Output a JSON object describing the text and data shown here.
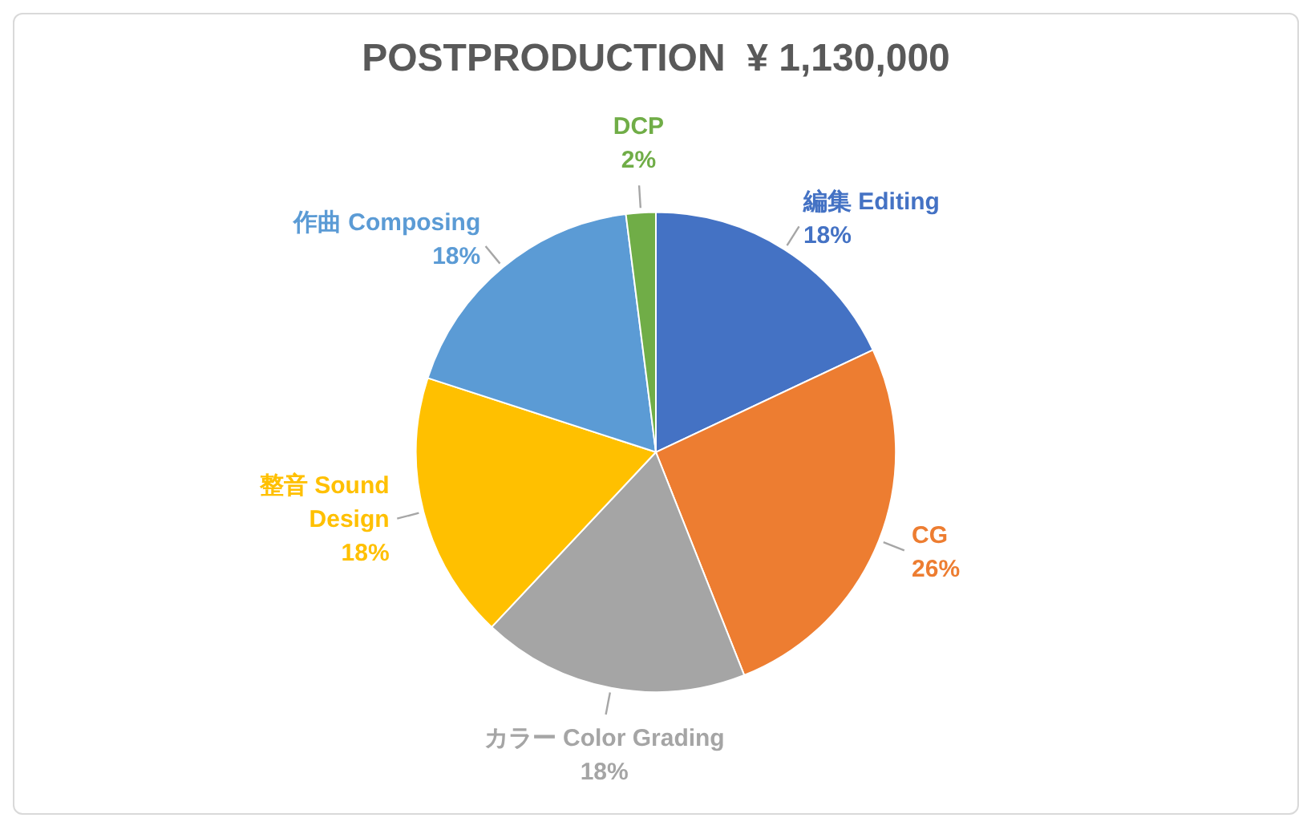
{
  "chart_data": {
    "type": "pie",
    "title": "POSTPRODUCTION  ¥ 1,130,000",
    "categories": [
      "編集 Editing",
      "CG",
      "カラー Color Grading",
      "整音 Sound Design",
      "作曲 Composing",
      "DCP"
    ],
    "values": [
      18,
      26,
      18,
      18,
      18,
      2
    ],
    "colors": [
      "#4472c4",
      "#ed7d31",
      "#a5a5a5",
      "#ffc000",
      "#5b9bd5",
      "#70ad47"
    ],
    "value_labels": [
      "18%",
      "26%",
      "18%",
      "18%",
      "18%",
      "2%"
    ],
    "legend": false
  }
}
